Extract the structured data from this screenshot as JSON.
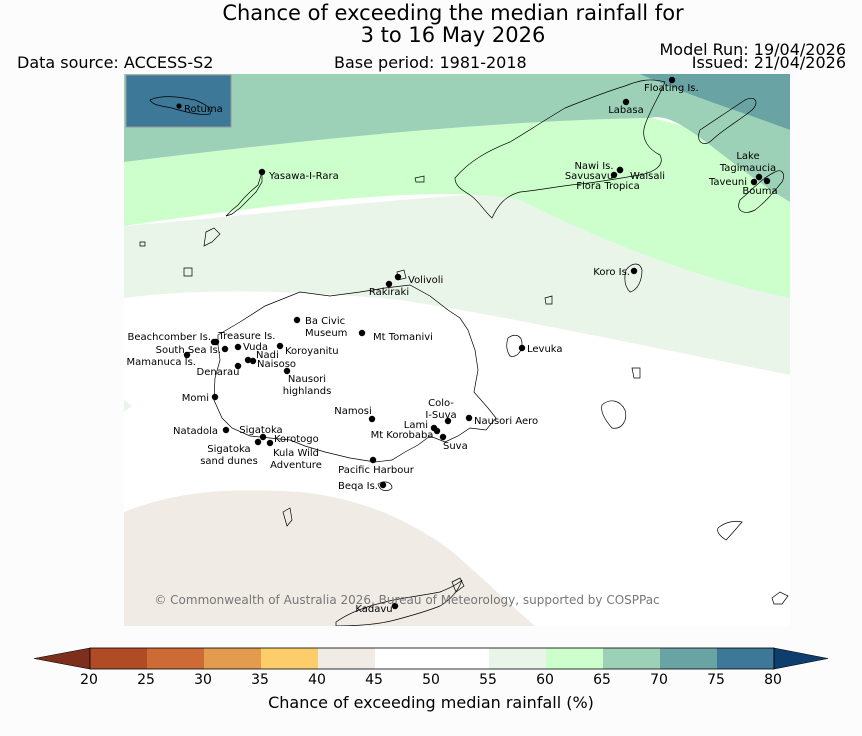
{
  "header": {
    "title_line1": "Chance of exceeding the median rainfall for",
    "title_line2": "3 to 16 May 2026",
    "data_source": "Data source: ACCESS-S2",
    "base_period": "Base period: 1981-2018",
    "model_run": "Model Run: 19/04/2026",
    "issued": "Issued: 21/04/2026"
  },
  "map": {
    "inset_label": "Rotuma",
    "copyright": "© Commonwealth of Australia 2026, Bureau of Meteorology, supported by COSPPac",
    "places": [
      {
        "name": "Floating Is."
      },
      {
        "name": "Labasa"
      },
      {
        "name": "Yasawa-I-Rara"
      },
      {
        "name": "Nawi Is."
      },
      {
        "name": "Savusavu"
      },
      {
        "name": "Waisali"
      },
      {
        "name": "Flora Tropica"
      },
      {
        "name": "Lake Tagimaucia"
      },
      {
        "name": "Taveuni"
      },
      {
        "name": "Bouma"
      },
      {
        "name": "Koro Is."
      },
      {
        "name": "Volivoli"
      },
      {
        "name": "Rakiraki"
      },
      {
        "name": "Ba Civic Museum"
      },
      {
        "name": "Mt Tomanivi"
      },
      {
        "name": "Beachcomber Is."
      },
      {
        "name": "Treasure Is."
      },
      {
        "name": "South Sea Is."
      },
      {
        "name": "Vuda"
      },
      {
        "name": "Koroyanitu"
      },
      {
        "name": "Nadi"
      },
      {
        "name": "Mamanuca Is."
      },
      {
        "name": "Naisoso"
      },
      {
        "name": "Denarau"
      },
      {
        "name": "Nausori highlands"
      },
      {
        "name": "Levuka"
      },
      {
        "name": "Momi"
      },
      {
        "name": "Namosi"
      },
      {
        "name": "Colo-I-Suva"
      },
      {
        "name": "Lami"
      },
      {
        "name": "Nausori Aero"
      },
      {
        "name": "Mt Korobaba"
      },
      {
        "name": "Suva"
      },
      {
        "name": "Natadola"
      },
      {
        "name": "Sigatoka"
      },
      {
        "name": "Korotogo"
      },
      {
        "name": "Sigatoka sand dunes"
      },
      {
        "name": "Kula Wild Adventure"
      },
      {
        "name": "Pacific Harbour"
      },
      {
        "name": "Beqa Is."
      },
      {
        "name": "Kadavu"
      }
    ]
  },
  "colorbar": {
    "label": "Chance of exceeding median rainfall (%)",
    "ticks": [
      "20",
      "25",
      "30",
      "35",
      "40",
      "45",
      "50",
      "55",
      "60",
      "65",
      "70",
      "75",
      "80"
    ],
    "colors": [
      "#7e2f1c",
      "#b04b26",
      "#cd6a36",
      "#e39b4e",
      "#fdcd6a",
      "#f0ebe4",
      "#ffffff",
      "#ffffff",
      "#e9f5e9",
      "#ccffcc",
      "#9cd1b8",
      "#6aa3a3",
      "#3d7898",
      "#0e3e6d"
    ]
  }
}
